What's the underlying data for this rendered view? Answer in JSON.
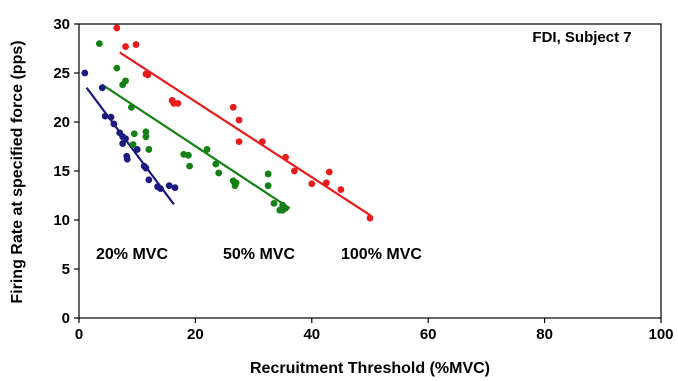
{
  "chart_data": {
    "type": "scatter",
    "title": "FDI, Subject 7",
    "xlabel": "Recruitment Threshold (%MVC)",
    "ylabel": "Firing Rate at specified force (pps)",
    "xlim": [
      0,
      100
    ],
    "ylim": [
      0,
      30
    ],
    "xticks": [
      0,
      20,
      40,
      60,
      80,
      100
    ],
    "yticks": [
      0,
      5,
      10,
      15,
      20,
      25,
      30
    ],
    "grid": false,
    "series": [
      {
        "name": "20% MVC",
        "color": "#1b1b80",
        "points": [
          [
            1,
            25
          ],
          [
            4,
            23.5
          ],
          [
            4.5,
            20.6
          ],
          [
            5.5,
            20.5
          ],
          [
            6,
            19.8
          ],
          [
            7,
            18.9
          ],
          [
            7.5,
            18.5
          ],
          [
            8,
            18.3
          ],
          [
            7.5,
            17.8
          ],
          [
            8.2,
            16.5
          ],
          [
            8.3,
            16.2
          ],
          [
            10,
            17.2
          ],
          [
            11.2,
            15.5
          ],
          [
            11.5,
            15.3
          ],
          [
            12,
            14.1
          ],
          [
            13.5,
            13.4
          ],
          [
            14,
            13.2
          ],
          [
            15.5,
            13.5
          ],
          [
            16.5,
            13.3
          ]
        ],
        "trend": [
          [
            1.3,
            23.5
          ],
          [
            16.3,
            11.6
          ]
        ]
      },
      {
        "name": "50% MVC",
        "color": "#158015",
        "points": [
          [
            3.5,
            28
          ],
          [
            6.5,
            25.5
          ],
          [
            7.5,
            23.8
          ],
          [
            8,
            24.2
          ],
          [
            9,
            21.5
          ],
          [
            9.5,
            18.8
          ],
          [
            9.3,
            17.7
          ],
          [
            11.5,
            19
          ],
          [
            11.5,
            18.5
          ],
          [
            12,
            17.2
          ],
          [
            18,
            16.7
          ],
          [
            18.8,
            16.6
          ],
          [
            19,
            15.5
          ],
          [
            22,
            17.2
          ],
          [
            23.5,
            15.7
          ],
          [
            24,
            14.8
          ],
          [
            26.5,
            14
          ],
          [
            27,
            13.8
          ],
          [
            26.8,
            13.5
          ],
          [
            32.5,
            14.7
          ],
          [
            32.5,
            13.5
          ],
          [
            33.5,
            11.7
          ],
          [
            34.5,
            11
          ],
          [
            35,
            11.5
          ],
          [
            35.5,
            11.2
          ],
          [
            35,
            11
          ]
        ],
        "trend": [
          [
            4,
            23.8
          ],
          [
            36.2,
            11.2
          ]
        ]
      },
      {
        "name": "100% MVC",
        "color": "#e81c1c",
        "points": [
          [
            6.5,
            29.6
          ],
          [
            8,
            27.7
          ],
          [
            9.8,
            27.9
          ],
          [
            11.5,
            24.9
          ],
          [
            11.8,
            24.8
          ],
          [
            16,
            22.2
          ],
          [
            16.3,
            21.9
          ],
          [
            17,
            21.9
          ],
          [
            26.5,
            21.5
          ],
          [
            27.5,
            20.2
          ],
          [
            27.5,
            18
          ],
          [
            31.5,
            18
          ],
          [
            35.5,
            16.4
          ],
          [
            37,
            15
          ],
          [
            40,
            13.7
          ],
          [
            42.5,
            13.8
          ],
          [
            43,
            14.9
          ],
          [
            45,
            13.1
          ],
          [
            50,
            10.2
          ]
        ],
        "trend": [
          [
            7,
            27.1
          ],
          [
            50,
            10.5
          ]
        ]
      }
    ]
  }
}
